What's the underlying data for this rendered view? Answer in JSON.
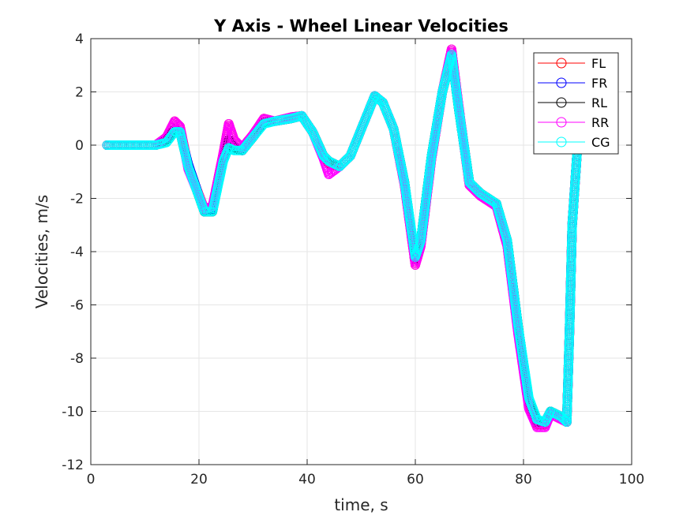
{
  "chart_data": {
    "type": "line",
    "title": "Y Axis - Wheel Linear Velocities",
    "xlabel": "time, s",
    "ylabel": "Velocities, m/s",
    "xlim": [
      0,
      100
    ],
    "ylim": [
      -12,
      4
    ],
    "xticks": [
      0,
      20,
      40,
      60,
      80,
      100
    ],
    "yticks": [
      4,
      2,
      0,
      -2,
      -4,
      -6,
      -8,
      -10,
      -12
    ],
    "xtick_labels": [
      "0",
      "20",
      "40",
      "60",
      "80",
      "100"
    ],
    "ytick_labels": [
      "4",
      "2",
      "0",
      "-2",
      "-4",
      "-6",
      "-8",
      "-10",
      "-12"
    ],
    "grid": true,
    "legend_position": "top-right",
    "marker": "circle",
    "series": [
      {
        "name": "FL",
        "color": "#ff0000",
        "x": [
          3,
          12,
          14,
          15.5,
          16.5,
          18,
          21,
          22.5,
          24.5,
          25.5,
          26.5,
          28,
          30,
          32,
          34,
          37,
          39,
          41,
          43,
          44,
          46,
          48,
          50,
          52.5,
          54,
          56,
          58,
          60,
          61,
          63,
          65,
          66.7,
          68,
          70,
          72,
          75,
          77,
          79,
          81,
          82.5,
          84,
          85,
          87,
          88,
          88.5,
          89,
          90
        ],
        "y": [
          0,
          0,
          0.3,
          0.9,
          0.7,
          -0.8,
          -2.4,
          -2.3,
          -0.3,
          0.8,
          0.2,
          -0.1,
          0.4,
          1.0,
          0.9,
          1.05,
          1.1,
          0.5,
          -0.4,
          -0.7,
          -0.8,
          -0.4,
          0.6,
          1.85,
          1.6,
          0.6,
          -1.5,
          -4.5,
          -3.8,
          -0.5,
          2.0,
          3.6,
          1.5,
          -1.5,
          -1.9,
          -2.3,
          -3.8,
          -7.0,
          -9.8,
          -10.5,
          -10.5,
          -10.1,
          -10.3,
          -10.4,
          -7.0,
          -3.0,
          0
        ]
      },
      {
        "name": "FR",
        "color": "#0000ff",
        "x": [
          3,
          12,
          14,
          15.5,
          16.5,
          18,
          21,
          22.5,
          24.5,
          25.5,
          26.5,
          28,
          30,
          32,
          34,
          37,
          39,
          41,
          43,
          44,
          46,
          48,
          50,
          52.5,
          54,
          56,
          58,
          60,
          61,
          63,
          65,
          66.7,
          68,
          70,
          72,
          75,
          77,
          79,
          81,
          82.5,
          84,
          85,
          87,
          88,
          88.5,
          89,
          90
        ],
        "y": [
          0,
          0,
          0.2,
          0.6,
          0.5,
          -0.7,
          -2.5,
          -2.4,
          -0.5,
          0.2,
          -0.1,
          -0.2,
          0.3,
          0.85,
          0.9,
          1.0,
          1.1,
          0.5,
          -0.4,
          -0.6,
          -0.8,
          -0.4,
          0.6,
          1.85,
          1.6,
          0.6,
          -1.4,
          -4.3,
          -3.6,
          -0.4,
          2.0,
          3.4,
          1.4,
          -1.4,
          -1.8,
          -2.2,
          -3.6,
          -6.8,
          -9.6,
          -10.4,
          -10.4,
          -10.0,
          -10.2,
          -10.4,
          -7.0,
          -3.0,
          0
        ]
      },
      {
        "name": "RL",
        "color": "#000000",
        "x": [
          3,
          12,
          14,
          15.5,
          16.5,
          18,
          21,
          22.5,
          24.5,
          25.5,
          26.5,
          28,
          30,
          32,
          34,
          37,
          39,
          41,
          43,
          44,
          46,
          48,
          50,
          52.5,
          54,
          56,
          58,
          60,
          61,
          63,
          65,
          66.7,
          68,
          70,
          72,
          75,
          77,
          79,
          81,
          82.5,
          84,
          85,
          87,
          88,
          88.5,
          89,
          90
        ],
        "y": [
          0,
          0,
          0.2,
          0.6,
          0.5,
          -0.8,
          -2.5,
          -2.5,
          -0.5,
          0.2,
          -0.1,
          -0.2,
          0.3,
          0.85,
          0.9,
          1.0,
          1.1,
          0.5,
          -0.4,
          -0.6,
          -0.8,
          -0.4,
          0.6,
          1.85,
          1.6,
          0.6,
          -1.4,
          -4.3,
          -3.6,
          -0.4,
          2.0,
          3.4,
          1.4,
          -1.4,
          -1.8,
          -2.2,
          -3.6,
          -6.8,
          -9.6,
          -10.4,
          -10.4,
          -10.0,
          -10.2,
          -10.4,
          -7.0,
          -3.0,
          0
        ]
      },
      {
        "name": "RR",
        "color": "#ff00ff",
        "x": [
          3,
          12,
          14,
          15.5,
          16.5,
          18,
          21,
          22.5,
          24.5,
          25.5,
          26.5,
          28,
          30,
          32,
          34,
          37,
          39,
          41,
          43,
          44,
          46,
          48,
          50,
          52.5,
          54,
          56,
          58,
          60,
          61,
          63,
          65,
          66.7,
          68,
          70,
          72,
          75,
          77,
          79,
          81,
          82.5,
          84,
          85,
          87,
          88,
          88.5,
          89,
          90
        ],
        "y": [
          0,
          0,
          0.3,
          0.9,
          0.7,
          -0.9,
          -2.4,
          -2.3,
          -0.3,
          0.8,
          0.2,
          -0.1,
          0.4,
          1.0,
          0.9,
          1.05,
          1.1,
          0.5,
          -0.5,
          -1.1,
          -0.8,
          -0.4,
          0.6,
          1.85,
          1.6,
          0.6,
          -1.5,
          -4.5,
          -3.8,
          -0.5,
          2.0,
          3.6,
          1.5,
          -1.5,
          -1.9,
          -2.3,
          -3.8,
          -7.1,
          -9.9,
          -10.6,
          -10.6,
          -10.1,
          -10.3,
          -10.4,
          -7.0,
          -3.0,
          0
        ]
      },
      {
        "name": "CG",
        "color": "#00ffff",
        "x": [
          3,
          12,
          14,
          15.5,
          16.5,
          18,
          21,
          22.5,
          24.5,
          25.5,
          26.5,
          28,
          30,
          32,
          34,
          37,
          39,
          41,
          43,
          44,
          46,
          48,
          50,
          52.5,
          54,
          56,
          58,
          60,
          61,
          63,
          65,
          66.7,
          68,
          70,
          72,
          75,
          77,
          79,
          81,
          82.5,
          84,
          85,
          87,
          88,
          88.5,
          89,
          90
        ],
        "y": [
          0,
          0,
          0.1,
          0.5,
          0.5,
          -0.8,
          -2.5,
          -2.5,
          -0.6,
          -0.1,
          -0.2,
          -0.2,
          0.3,
          0.8,
          0.9,
          1.0,
          1.1,
          0.5,
          -0.4,
          -0.6,
          -0.8,
          -0.4,
          0.6,
          1.85,
          1.6,
          0.6,
          -1.4,
          -4.2,
          -3.6,
          -0.4,
          2.0,
          3.4,
          1.4,
          -1.4,
          -1.8,
          -2.2,
          -3.6,
          -6.8,
          -9.5,
          -10.3,
          -10.4,
          -10.0,
          -10.2,
          -10.4,
          -7.0,
          -3.0,
          0
        ]
      }
    ]
  }
}
